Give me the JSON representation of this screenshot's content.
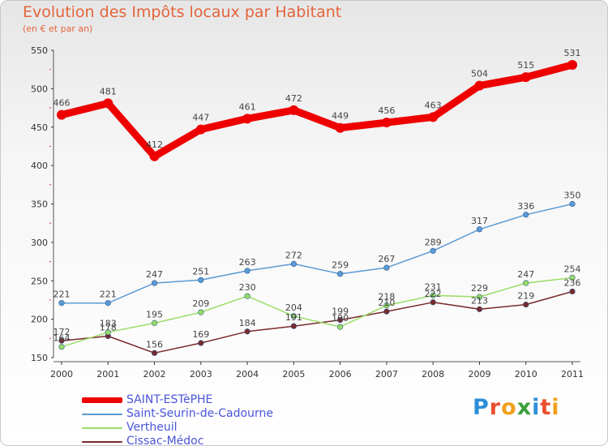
{
  "title": "Evolution des Impôts locaux par Habitant",
  "subtitle": "(en € et par an)",
  "logo": "Proxiti",
  "logo_colors": [
    "#2d8fd9",
    "#e8502e",
    "#f0a01c",
    "#3aa03a",
    "#2d8fd9",
    "#e8502e",
    "#f0a01c"
  ],
  "chart_data": {
    "type": "line",
    "x": [
      "2000",
      "2001",
      "2002",
      "2003",
      "2004",
      "2005",
      "2006",
      "2007",
      "2008",
      "2009",
      "2010",
      "2011"
    ],
    "ylim": [
      150,
      550
    ],
    "yticks": [
      150,
      200,
      250,
      300,
      350,
      400,
      450,
      500,
      550
    ],
    "grid": false,
    "legend_position": "bottom-left",
    "series": [
      {
        "name": "SAINT-ESTèPHE",
        "color": "#ee0000",
        "values": [
          466,
          481,
          412,
          447,
          461,
          472,
          449,
          456,
          463,
          504,
          515,
          531
        ]
      },
      {
        "name": "Saint-Seurin-de-Cadourne",
        "color": "#5b9bd5",
        "values": [
          221,
          221,
          247,
          251,
          263,
          272,
          259,
          267,
          289,
          317,
          336,
          350
        ]
      },
      {
        "name": "Vertheuil",
        "color": "#99dd66",
        "values": [
          164,
          183,
          195,
          209,
          230,
          204,
          190,
          218,
          231,
          229,
          247,
          254
        ]
      },
      {
        "name": "Cissac-Médoc",
        "color": "#7a2a2a",
        "values": [
          172,
          178,
          156,
          169,
          184,
          191,
          199,
          210,
          222,
          213,
          219,
          236
        ]
      }
    ]
  }
}
